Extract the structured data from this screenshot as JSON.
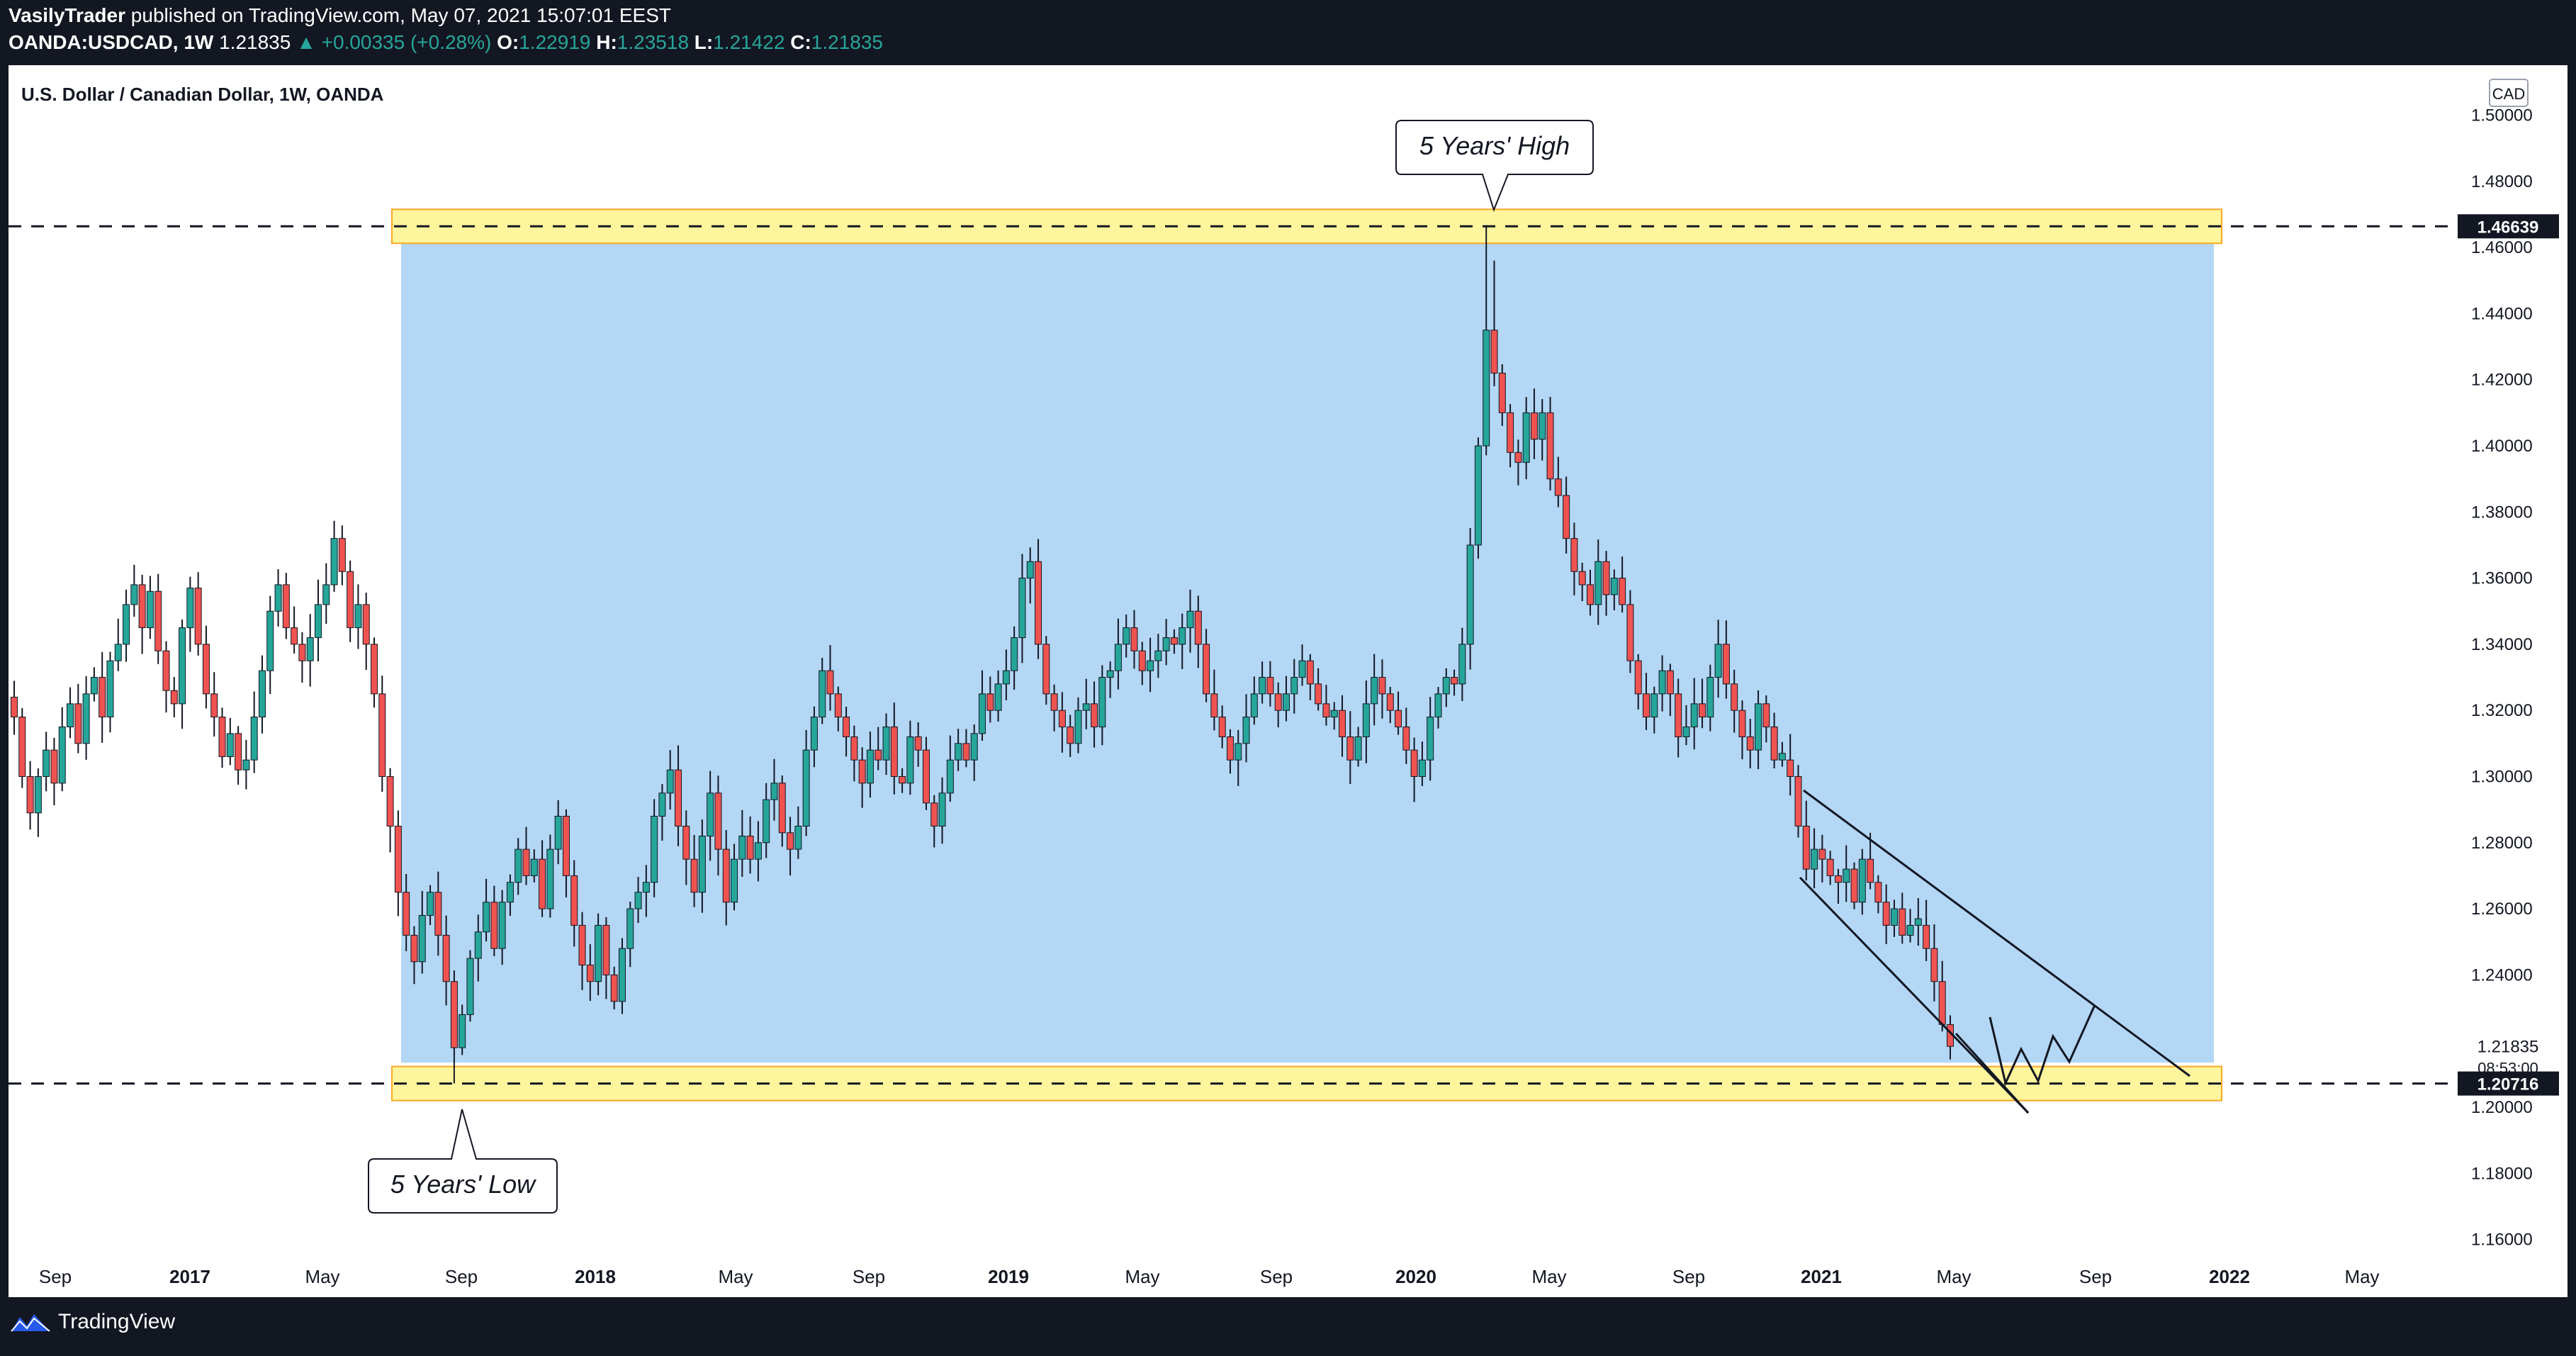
{
  "header": {
    "author": "VasilyTrader",
    "published_text": "published on TradingView.com, May 07, 2021 15:07:01 EEST",
    "symbol": "OANDA:USDCAD, 1W",
    "last": "1.21835",
    "change": "+0.00335 (+0.28%)",
    "o_label": "O:",
    "o_value": "1.22919",
    "h_label": "H:",
    "h_value": "1.23518",
    "l_label": "L:",
    "l_value": "1.21422",
    "c_label": "C:",
    "c_value": "1.21835"
  },
  "footer": {
    "brand": "TradingView"
  },
  "colors": {
    "up": "#26a69a",
    "down": "#ef5350",
    "range_fill": "#b3d7f5",
    "zone_fill": "#fff59d",
    "zone_border": "#f9a825"
  },
  "chart_data": {
    "type": "candlestick",
    "title": "U.S. Dollar / Canadian Dollar, 1W, OANDA",
    "currency_label": "CAD",
    "timeframe": "1W",
    "y_ticks": [
      "1.50000",
      "1.48000",
      "1.46000",
      "1.44000",
      "1.42000",
      "1.40000",
      "1.38000",
      "1.36000",
      "1.34000",
      "1.32000",
      "1.30000",
      "1.28000",
      "1.26000",
      "1.24000",
      "1.22000",
      "1.20000",
      "1.18000",
      "1.16000"
    ],
    "ylim": [
      1.15,
      1.505
    ],
    "x_ticks": [
      "Sep",
      "2017",
      "May",
      "Sep",
      "2018",
      "May",
      "Sep",
      "2019",
      "May",
      "Sep",
      "2020",
      "May",
      "Sep",
      "2021",
      "May",
      "Sep",
      "2022",
      "May"
    ],
    "price_labels": {
      "resistance": "1.46639",
      "last": "1.21835",
      "countdown": "08:53:00",
      "support": "1.20716"
    },
    "levels": {
      "resistance": 1.46639,
      "support": 1.20716,
      "last": 1.21835
    },
    "annotations": {
      "high": "5 Years' High",
      "low": "5 Years' Low"
    },
    "close_path": [
      1.318,
      1.3,
      1.289,
      1.3,
      1.308,
      1.298,
      1.315,
      1.322,
      1.31,
      1.325,
      1.33,
      1.318,
      1.335,
      1.34,
      1.352,
      1.358,
      1.345,
      1.356,
      1.338,
      1.326,
      1.322,
      1.345,
      1.357,
      1.34,
      1.325,
      1.318,
      1.306,
      1.313,
      1.302,
      1.305,
      1.318,
      1.332,
      1.35,
      1.358,
      1.345,
      1.34,
      1.335,
      1.342,
      1.352,
      1.358,
      1.372,
      1.362,
      1.345,
      1.352,
      1.34,
      1.325,
      1.3,
      1.285,
      1.265,
      1.252,
      1.244,
      1.258,
      1.265,
      1.252,
      1.238,
      1.218,
      1.228,
      1.245,
      1.253,
      1.262,
      1.248,
      1.262,
      1.268,
      1.278,
      1.27,
      1.275,
      1.26,
      1.278,
      1.288,
      1.27,
      1.255,
      1.243,
      1.238,
      1.255,
      1.24,
      1.232,
      1.248,
      1.26,
      1.265,
      1.268,
      1.288,
      1.295,
      1.302,
      1.285,
      1.275,
      1.265,
      1.282,
      1.295,
      1.278,
      1.262,
      1.275,
      1.282,
      1.275,
      1.28,
      1.293,
      1.298,
      1.283,
      1.278,
      1.285,
      1.308,
      1.318,
      1.332,
      1.325,
      1.318,
      1.312,
      1.305,
      1.298,
      1.308,
      1.305,
      1.315,
      1.3,
      1.298,
      1.312,
      1.308,
      1.292,
      1.285,
      1.295,
      1.305,
      1.31,
      1.305,
      1.313,
      1.325,
      1.32,
      1.328,
      1.332,
      1.342,
      1.36,
      1.365,
      1.34,
      1.325,
      1.32,
      1.315,
      1.31,
      1.32,
      1.322,
      1.315,
      1.33,
      1.332,
      1.34,
      1.345,
      1.338,
      1.332,
      1.335,
      1.338,
      1.342,
      1.34,
      1.345,
      1.35,
      1.34,
      1.325,
      1.318,
      1.312,
      1.305,
      1.31,
      1.318,
      1.325,
      1.33,
      1.325,
      1.32,
      1.325,
      1.33,
      1.335,
      1.328,
      1.322,
      1.318,
      1.32,
      1.312,
      1.305,
      1.312,
      1.322,
      1.33,
      1.325,
      1.32,
      1.315,
      1.308,
      1.3,
      1.305,
      1.318,
      1.325,
      1.33,
      1.328,
      1.34,
      1.37,
      1.4,
      1.435,
      1.422,
      1.41,
      1.398,
      1.395,
      1.41,
      1.402,
      1.41,
      1.39,
      1.385,
      1.372,
      1.362,
      1.358,
      1.352,
      1.365,
      1.355,
      1.36,
      1.352,
      1.335,
      1.325,
      1.318,
      1.325,
      1.332,
      1.325,
      1.312,
      1.315,
      1.322,
      1.318,
      1.33,
      1.34,
      1.328,
      1.32,
      1.312,
      1.308,
      1.322,
      1.315,
      1.305,
      1.305,
      1.3,
      1.285,
      1.272,
      1.278,
      1.275,
      1.27,
      1.268,
      1.272,
      1.262,
      1.275,
      1.268,
      1.262,
      1.255,
      1.26,
      1.252,
      1.255,
      1.255,
      1.248,
      1.238,
      1.225,
      1.2184
    ]
  }
}
